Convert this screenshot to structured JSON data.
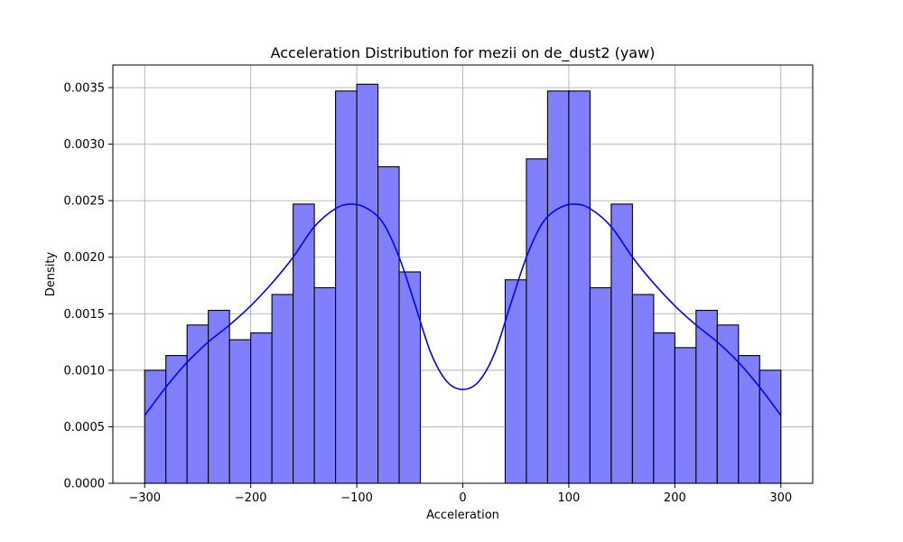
{
  "chart_data": {
    "type": "bar",
    "title": "Acceleration Distribution for mezii on de_dust2 (yaw)",
    "xlabel": "Acceleration",
    "ylabel": "Density",
    "xlim": [
      -330,
      330
    ],
    "ylim": [
      0,
      0.0037
    ],
    "xticks": [
      -300,
      -200,
      -100,
      0,
      100,
      200,
      300
    ],
    "xtick_labels": [
      "−300",
      "−200",
      "−100",
      "0",
      "100",
      "200",
      "300"
    ],
    "yticks": [
      0,
      0.0005,
      0.001,
      0.0015,
      0.002,
      0.0025,
      0.003,
      0.0035
    ],
    "ytick_labels": [
      "0.0000",
      "0.0005",
      "0.0010",
      "0.0015",
      "0.0020",
      "0.0025",
      "0.0030",
      "0.0035"
    ],
    "grid": true,
    "bar_color": "#8080ff",
    "bar_edge_color": "#000000",
    "kde_color": "#0000ff",
    "bins": [
      {
        "x0": -300,
        "x1": -280,
        "density": 0.001
      },
      {
        "x0": -280,
        "x1": -260,
        "density": 0.00113
      },
      {
        "x0": -260,
        "x1": -240,
        "density": 0.0014
      },
      {
        "x0": -240,
        "x1": -220,
        "density": 0.00153
      },
      {
        "x0": -220,
        "x1": -200,
        "density": 0.00127
      },
      {
        "x0": -200,
        "x1": -180,
        "density": 0.00133
      },
      {
        "x0": -180,
        "x1": -160,
        "density": 0.00167
      },
      {
        "x0": -160,
        "x1": -140,
        "density": 0.00247
      },
      {
        "x0": -140,
        "x1": -120,
        "density": 0.00173
      },
      {
        "x0": -120,
        "x1": -100,
        "density": 0.00347
      },
      {
        "x0": -100,
        "x1": -80,
        "density": 0.00353
      },
      {
        "x0": -80,
        "x1": -60,
        "density": 0.0028
      },
      {
        "x0": -60,
        "x1": -40,
        "density": 0.00187
      },
      {
        "x0": 40,
        "x1": 60,
        "density": 0.0018
      },
      {
        "x0": 60,
        "x1": 80,
        "density": 0.00287
      },
      {
        "x0": 80,
        "x1": 100,
        "density": 0.00347
      },
      {
        "x0": 100,
        "x1": 120,
        "density": 0.00347
      },
      {
        "x0": 120,
        "x1": 140,
        "density": 0.00173
      },
      {
        "x0": 140,
        "x1": 160,
        "density": 0.00247
      },
      {
        "x0": 160,
        "x1": 180,
        "density": 0.00167
      },
      {
        "x0": 180,
        "x1": 200,
        "density": 0.00133
      },
      {
        "x0": 200,
        "x1": 220,
        "density": 0.0012
      },
      {
        "x0": 220,
        "x1": 240,
        "density": 0.00153
      },
      {
        "x0": 240,
        "x1": 260,
        "density": 0.0014
      },
      {
        "x0": 260,
        "x1": 280,
        "density": 0.00113
      },
      {
        "x0": 280,
        "x1": 300,
        "density": 0.001
      }
    ],
    "kde": {
      "x": [
        -300,
        -280,
        -260,
        -240,
        -220,
        -200,
        -180,
        -160,
        -140,
        -120,
        -105,
        -90,
        -75,
        -60,
        -45,
        -30,
        -15,
        0,
        15,
        30,
        45,
        60,
        75,
        90,
        105,
        120,
        140,
        160,
        180,
        200,
        220,
        240,
        260,
        280,
        300
      ],
      "y": [
        0.0006,
        0.00085,
        0.00107,
        0.00125,
        0.0014,
        0.00157,
        0.00177,
        0.002,
        0.00227,
        0.00243,
        0.00247,
        0.00243,
        0.0023,
        0.002,
        0.00158,
        0.00115,
        0.0009,
        0.00083,
        0.0009,
        0.00115,
        0.00158,
        0.002,
        0.0023,
        0.00243,
        0.00247,
        0.00243,
        0.00227,
        0.002,
        0.00177,
        0.00157,
        0.0014,
        0.00125,
        0.00107,
        0.00085,
        0.0006
      ]
    }
  }
}
